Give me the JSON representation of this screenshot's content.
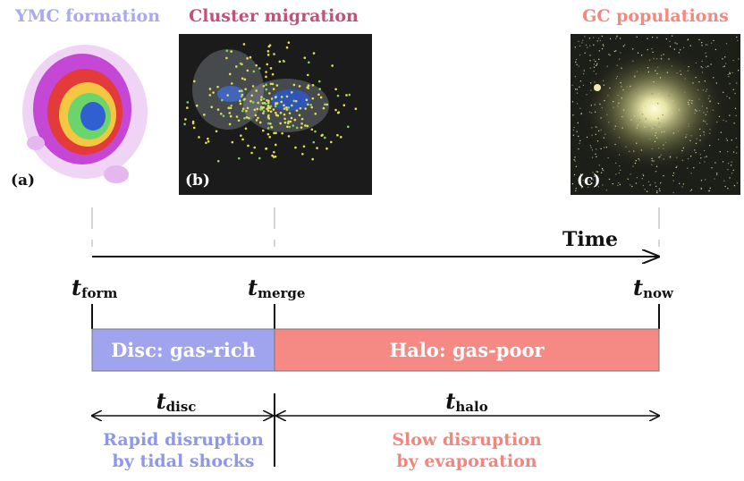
{
  "panels": [
    {
      "title": "YMC formation",
      "label": "(a)"
    },
    {
      "title": "Cluster migration",
      "label": "(b)"
    },
    {
      "title": "GC populations",
      "label": "(c)"
    }
  ],
  "axis": {
    "label": "Time"
  },
  "markers": [
    {
      "symbol": "t",
      "subscript": "form"
    },
    {
      "symbol": "t",
      "subscript": "merge"
    },
    {
      "symbol": "t",
      "subscript": "now"
    }
  ],
  "phases": [
    {
      "label": "Disc: gas-rich",
      "timescale": {
        "symbol": "t",
        "subscript": "disc"
      },
      "description": [
        "Rapid disruption",
        "by tidal shocks"
      ]
    },
    {
      "label": "Halo: gas-poor",
      "timescale": {
        "symbol": "t",
        "subscript": "halo"
      },
      "description": [
        "Slow disruption",
        "by evaporation"
      ]
    }
  ]
}
